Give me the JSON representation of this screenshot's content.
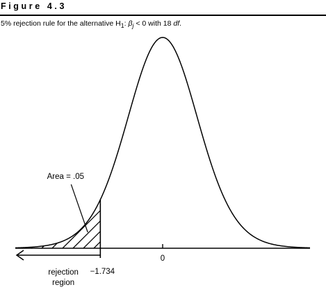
{
  "figure": {
    "label": "Figure 4.3",
    "caption_pre": "5% rejection rule for the alternative H",
    "caption_sub": "1",
    "caption_colon": ": ",
    "caption_beta": "β",
    "caption_j": "j",
    "caption_rel": " < 0 with 18 ",
    "caption_df": "df",
    "caption_end": "."
  },
  "chart_data": {
    "type": "area",
    "distribution": "t",
    "degrees_of_freedom": 18,
    "critical_value": -1.734,
    "tail_area": 0.05,
    "xlim": [
      -4.1,
      4.1
    ],
    "x_ticks": [
      {
        "value": -1.734,
        "label": "−1.734"
      },
      {
        "value": 0,
        "label": "0"
      }
    ],
    "annotations": {
      "area_label": "Area = .05",
      "region_line1": "rejection",
      "region_line2": "region"
    },
    "shaded_region": "left-tail",
    "hatch": true,
    "grid": false,
    "legend": "none"
  }
}
